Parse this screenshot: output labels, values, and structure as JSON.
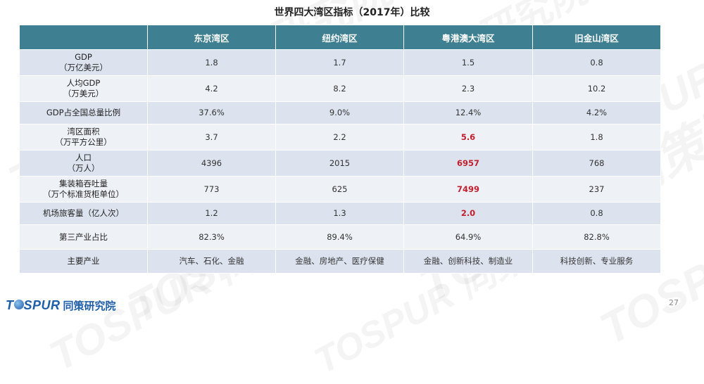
{
  "title": "世界四大湾区指标（2017年）比较",
  "header": [
    "",
    "东京湾区",
    "纽约湾区",
    "粤港澳大湾区",
    "旧金山湾区"
  ],
  "rows": [
    {
      "label": [
        "GDP",
        "（万亿美元）"
      ],
      "values": [
        "1.8",
        "1.7",
        "1.5",
        "0.8"
      ],
      "highlight": []
    },
    {
      "label": [
        "人均GDP",
        "（万美元）"
      ],
      "values": [
        "4.2",
        "8.2",
        "2.3",
        "10.2"
      ],
      "highlight": []
    },
    {
      "label": [
        "GDP占全国总量比例"
      ],
      "values": [
        "37.6%",
        "9.0%",
        "12.4%",
        "4.2%"
      ],
      "highlight": []
    },
    {
      "label": [
        "湾区面积",
        "（万平方公里）"
      ],
      "values": [
        "3.7",
        "2.2",
        "5.6",
        "1.8"
      ],
      "highlight": [
        2
      ]
    },
    {
      "label": [
        "人口",
        "（万人）"
      ],
      "values": [
        "4396",
        "2015",
        "6957",
        "768"
      ],
      "highlight": [
        2
      ]
    },
    {
      "label": [
        "集装箱吞吐量",
        "（万个标准货柜单位）"
      ],
      "values": [
        "773",
        "625",
        "7499",
        "237"
      ],
      "highlight": [
        2
      ]
    },
    {
      "label": [
        "机场旅客量（亿人次）"
      ],
      "values": [
        "1.2",
        "1.3",
        "2.0",
        "0.8"
      ],
      "highlight": [
        2
      ]
    },
    {
      "label": [
        "第三产业占比"
      ],
      "values": [
        "82.3%",
        "89.4%",
        "64.9%",
        "82.8%"
      ],
      "highlight": []
    },
    {
      "label": [
        "主要产业"
      ],
      "values": [
        "汽车、石化、金融",
        "金融、房地产、医疗保健",
        "金融、创新科技、制造业",
        "科技创新、专业服务"
      ],
      "highlight": []
    }
  ],
  "logo": {
    "en_prefix": "T",
    "en_suffix": "SPUR",
    "cn": "同策研究院"
  },
  "watermark_text": "TOSPUR 同策研究院",
  "page_number": "27",
  "colors": {
    "header_bg": "#3e7f92",
    "highlight": "#c0202e",
    "brand": "#1e5ea8"
  }
}
